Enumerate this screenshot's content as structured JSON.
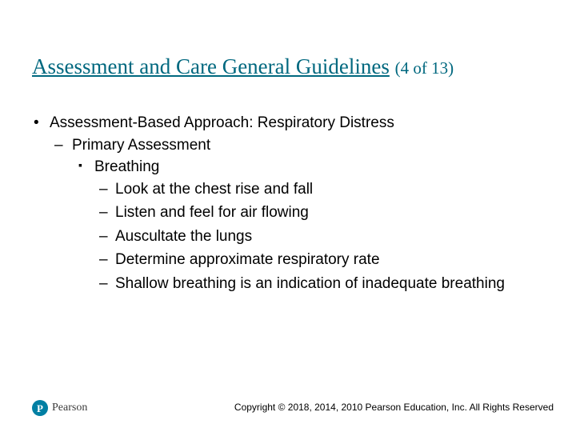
{
  "colors": {
    "title": "#00687f",
    "body_text": "#000000",
    "background": "#ffffff",
    "logo_bg": "#007fa3",
    "logo_fg": "#ffffff",
    "brand_text": "#3a3a3a",
    "copyright_text": "#000000"
  },
  "typography": {
    "title_family": "Times New Roman",
    "title_size_pt": 20,
    "counter_size_pt": 16,
    "body_family": "Arial",
    "body_size_pt": 14,
    "copyright_size_pt": 9
  },
  "title": {
    "main": "Assessment and Care General Guidelines",
    "counter": "(4 of 13)"
  },
  "bullets": {
    "lvl1": "Assessment-Based Approach: Respiratory Distress",
    "lvl2": "Primary Assessment",
    "lvl3": "Breathing",
    "lvl4": [
      "Look at the chest rise and fall",
      "Listen and feel for air flowing",
      "Auscultate the lungs",
      "Determine approximate respiratory rate",
      "Shallow breathing is an indication of inadequate breathing"
    ]
  },
  "footer": {
    "logo_letter": "P",
    "brand": "Pearson",
    "copyright": "Copyright © 2018, 2014, 2010 Pearson Education, Inc. All Rights Reserved"
  }
}
